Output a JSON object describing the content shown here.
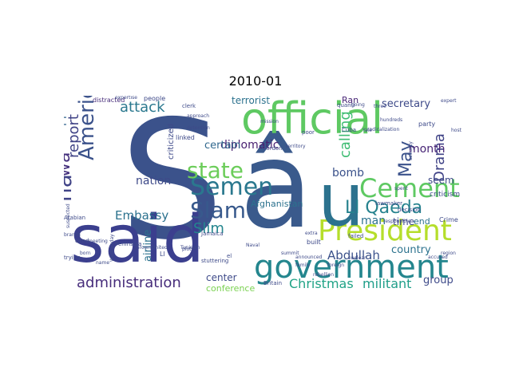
{
  "title": "2010-01",
  "words": [
    {
      "t": "S",
      "c": "#3b528b"
    },
    {
      "t": "â",
      "c": "#3a5a8c"
    },
    {
      "t": "official",
      "c": "#5ec962"
    },
    {
      "t": "said",
      "c": "#3b3f8e"
    },
    {
      "t": "government",
      "c": "#24868e"
    },
    {
      "t": "President",
      "c": "#b5de2b"
    },
    {
      "t": "u",
      "c": "#2c728e"
    },
    {
      "t": "Cement",
      "c": "#5ec962"
    },
    {
      "t": "Semen",
      "c": "#2a788e"
    },
    {
      "t": "Slam",
      "c": "#38598c"
    },
    {
      "t": "state",
      "c": "#6ccd5a"
    },
    {
      "t": "American",
      "c": "#3b528b"
    },
    {
      "t": "Ll Qaeda",
      "c": "#26828e"
    },
    {
      "t": "ha",
      "c": "#414487"
    },
    {
      "t": "wa",
      "c": "#46327e"
    },
    {
      "t": "administration",
      "c": "#472d7b"
    },
    {
      "t": "May",
      "c": "#3b528b"
    },
    {
      "t": "Slim",
      "c": "#24868e"
    },
    {
      "t": "calling",
      "c": "#3fbc73"
    },
    {
      "t": "Drama",
      "c": "#414487"
    },
    {
      "t": "attack",
      "c": "#2a788e"
    },
    {
      "t": "report",
      "c": "#414487"
    },
    {
      "t": "Christmas",
      "c": "#20a386"
    },
    {
      "t": "militant",
      "c": "#1f9e89"
    },
    {
      "t": "Abdullah",
      "c": "#3b528b"
    },
    {
      "t": "Embassy",
      "c": "#2c728e"
    },
    {
      "t": "diplomatic",
      "c": "#481f70"
    },
    {
      "t": "support",
      "c": "#32648e"
    },
    {
      "t": "nation",
      "c": "#3e4a89"
    },
    {
      "t": "month",
      "c": "#482576"
    },
    {
      "t": "bomb",
      "c": "#3b528b"
    },
    {
      "t": "man",
      "c": "#2c728e"
    },
    {
      "t": "airline",
      "c": "#2c728e"
    },
    {
      "t": "terrorist",
      "c": "#2c728e"
    },
    {
      "t": "secretary",
      "c": "#3e4a89"
    },
    {
      "t": "country",
      "c": "#2c728e"
    },
    {
      "t": "group",
      "c": "#3e4a89"
    },
    {
      "t": "center",
      "c": "#3e4a89"
    },
    {
      "t": "conference",
      "c": "#7ad151"
    },
    {
      "t": "Afghanistan",
      "c": "#2c728e"
    },
    {
      "t": "time",
      "c": "#3e4a89"
    },
    {
      "t": "seem",
      "c": "#3e4a89"
    },
    {
      "t": "end",
      "c": "#2c728e"
    },
    {
      "t": "certain",
      "c": "#31688e"
    },
    {
      "t": "Ran",
      "c": "#482576"
    },
    {
      "t": "criticized",
      "c": "#3e4a89"
    },
    {
      "t": "criticism",
      "c": "#3e4a89"
    },
    {
      "t": "party",
      "c": "#3e4a89"
    },
    {
      "t": "Crime",
      "c": "#3e4a89"
    },
    {
      "t": "decision",
      "c": "#3e4a89"
    },
    {
      "t": "failed",
      "c": "#3e4a89"
    },
    {
      "t": "people",
      "c": "#3e4a89"
    },
    {
      "t": "distracted",
      "c": "#472d7b"
    },
    {
      "t": "expertise",
      "c": "#3e4a89"
    },
    {
      "t": "clerk",
      "c": "#3e4a89"
    },
    {
      "t": "linked",
      "c": "#3e4a89"
    },
    {
      "t": "poor",
      "c": "#3e4a89"
    },
    {
      "t": "Cuba",
      "c": "#3e4a89"
    },
    {
      "t": "built",
      "c": "#3e4a89"
    },
    {
      "t": "stuttering",
      "c": "#3e4a89"
    },
    {
      "t": "cited",
      "c": "#3e4a89"
    },
    {
      "t": "born",
      "c": "#3e4a89"
    },
    {
      "t": "trying",
      "c": "#3e4a89"
    },
    {
      "t": "name",
      "c": "#3e4a89"
    },
    {
      "t": "meeting",
      "c": "#3e4a89"
    },
    {
      "t": "Arabian",
      "c": "#3e4a89"
    },
    {
      "t": "branch",
      "c": "#3e4a89"
    },
    {
      "t": "Peninsula",
      "c": "#3e4a89"
    },
    {
      "t": "suspected",
      "c": "#3e4a89"
    },
    {
      "t": "Jamaica",
      "c": "#3e4a89"
    },
    {
      "t": "announced",
      "c": "#3e4a89"
    },
    {
      "t": "Britain",
      "c": "#3e4a89"
    },
    {
      "t": "detention",
      "c": "#3e4a89"
    },
    {
      "t": "Gordon",
      "c": "#3e4a89"
    },
    {
      "t": "territory",
      "c": "#3e4a89"
    },
    {
      "t": "radicalization",
      "c": "#3e4a89"
    },
    {
      "t": "lawmaker",
      "c": "#3e4a89"
    },
    {
      "t": "responsible",
      "c": "#3e4a89"
    },
    {
      "t": "approach",
      "c": "#3e4a89"
    },
    {
      "t": "quanti",
      "c": "#3e4a89"
    },
    {
      "t": "going",
      "c": "#3e4a89"
    },
    {
      "t": "security",
      "c": "#3e4a89"
    },
    {
      "t": "expert",
      "c": "#3e4a89"
    },
    {
      "t": "Wednesday",
      "c": "#3e4a89"
    },
    {
      "t": "region",
      "c": "#3e4a89"
    },
    {
      "t": "foreign",
      "c": "#3e4a89"
    },
    {
      "t": "family",
      "c": "#3e4a89"
    },
    {
      "t": "plot",
      "c": "#3e4a89"
    },
    {
      "t": "Ll",
      "c": "#3e4a89"
    },
    {
      "t": "el",
      "c": "#3e4a89"
    },
    {
      "t": "Naval",
      "c": "#3e4a89"
    },
    {
      "t": "Yale",
      "c": "#3e4a89"
    },
    {
      "t": "three",
      "c": "#3e4a89"
    },
    {
      "t": "host",
      "c": "#3e4a89"
    },
    {
      "t": "spent",
      "c": "#3e4a89"
    },
    {
      "t": "accused",
      "c": "#3e4a89"
    },
    {
      "t": "mission",
      "c": "#3e4a89"
    },
    {
      "t": "hundreds",
      "c": "#3e4a89"
    },
    {
      "t": "Grown",
      "c": "#3e4a89"
    },
    {
      "t": "United",
      "c": "#3e4a89"
    },
    {
      "t": "Tunisian",
      "c": "#3e4a89"
    },
    {
      "t": "rebellion",
      "c": "#3e4a89"
    },
    {
      "t": "extra",
      "c": "#3e4a89"
    },
    {
      "t": "nuclear",
      "c": "#3e4a89"
    },
    {
      "t": "summit",
      "c": "#3e4a89"
    }
  ]
}
